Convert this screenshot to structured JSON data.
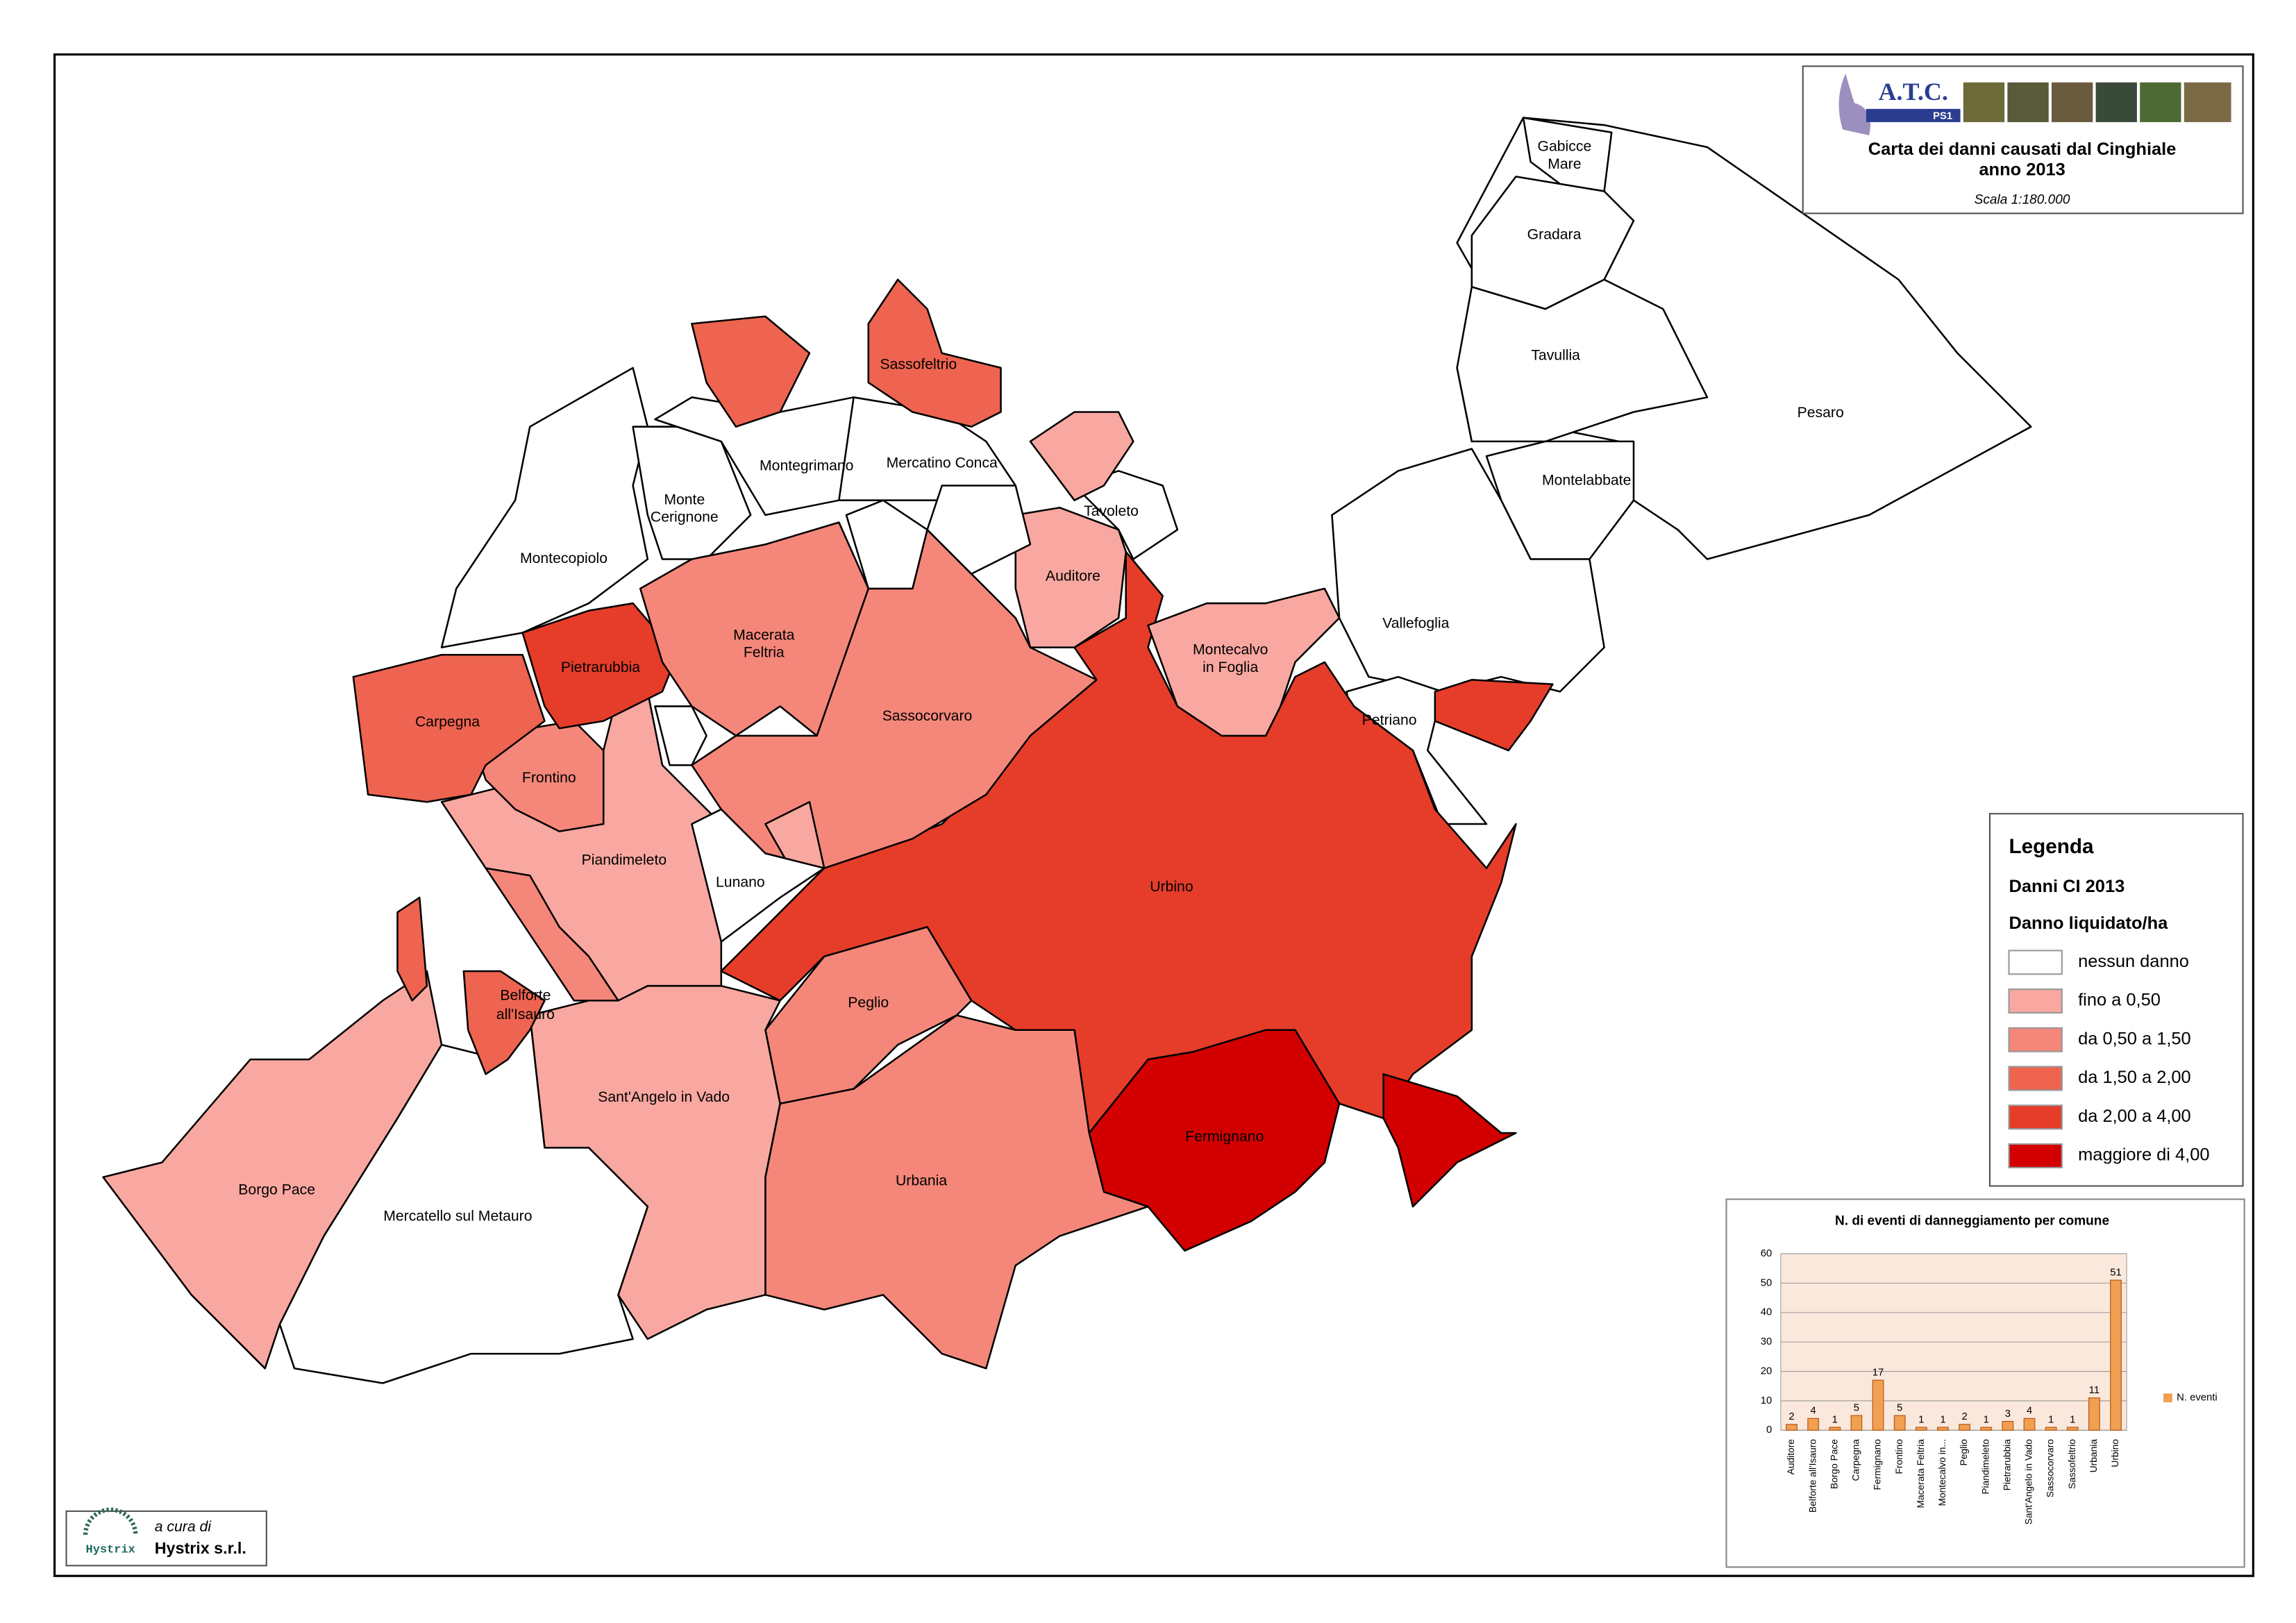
{
  "header": {
    "logo_title": "A.T.C.",
    "logo_sub": "PS1",
    "title": "Carta dei danni causati dal Cinghiale",
    "subtitle": "anno 2013",
    "scale": "Scala  1:180.000"
  },
  "map": {
    "labels": [
      [
        "Gabicce",
        "Mare"
      ],
      [
        "Gradara"
      ],
      [
        "Tavullia"
      ],
      [
        "Pesaro"
      ],
      [
        "Montelabbate"
      ],
      [
        "Vallefoglia"
      ],
      [
        "Petriano"
      ],
      [
        "Urbino"
      ],
      [
        "Fermignano"
      ],
      [
        "Urbania"
      ],
      [
        "Peglio"
      ],
      [
        "Sant'Angelo in Vado"
      ],
      [
        "Mercatello sul Metauro"
      ],
      [
        "Borgo Pace"
      ],
      [
        "Belforte",
        "all'Isauro"
      ],
      [
        "Lunano"
      ],
      [
        "Piandimeleto"
      ],
      [
        "Frontino"
      ],
      [
        "Carpegna"
      ],
      [
        "Pietrarubbia"
      ],
      [
        "Montecopiolo"
      ],
      [
        "Monte",
        "Cerignone"
      ],
      [
        "Montegrimano"
      ],
      [
        "Mercatino Conca"
      ],
      [
        "Macerata",
        "Feltria"
      ],
      [
        "Sassocorvaro"
      ],
      [
        "Auditore"
      ],
      [
        "Tavoleto"
      ],
      [
        "Montecalvo",
        "in Foglia"
      ],
      [
        "Sassofeltrio"
      ]
    ]
  },
  "legend": {
    "title": "Legenda",
    "subtitle": "Danni CI 2013",
    "caption": "Danno liquidato/ha",
    "classes": [
      {
        "label": "nessun danno",
        "color": "#ffffff"
      },
      {
        "label": "fino a 0,50",
        "color": "#f8a8a0"
      },
      {
        "label": "da 0,50 a 1,50",
        "color": "#f4877a"
      },
      {
        "label": "da 1,50 a 2,00",
        "color": "#ee6450"
      },
      {
        "label": "da 2,00 a 4,00",
        "color": "#e53d2a"
      },
      {
        "label": "maggiore di 4,00",
        "color": "#d20000"
      }
    ]
  },
  "credit": {
    "prefix": "a cura di",
    "logo": "Hystrix",
    "name": "Hystrix s.r.l."
  },
  "chart_data": {
    "type": "bar",
    "title": "N. di eventi di danneggiamento per comune",
    "categories": [
      "Auditore",
      "Belforte all'Isauro",
      "Borgo Pace",
      "Carpegna",
      "Fermignano",
      "Frontino",
      "Macerata Feltria",
      "Montecalvo in...",
      "Peglio",
      "Piandimeleto",
      "Pietrarubbia",
      "Sant'Angelo in Vado",
      "Sassocorvaro",
      "Sassofeltrio",
      "Urbania",
      "Urbino"
    ],
    "series": [
      {
        "name": "N. eventi",
        "color": "#f0a050",
        "values": [
          2,
          4,
          1,
          5,
          17,
          5,
          1,
          1,
          2,
          1,
          3,
          4,
          1,
          1,
          11,
          51
        ]
      }
    ],
    "ylim": [
      0,
      60
    ],
    "yticks": [
      0,
      10,
      20,
      30,
      40,
      50,
      60
    ],
    "grid": true,
    "legend": "right"
  }
}
